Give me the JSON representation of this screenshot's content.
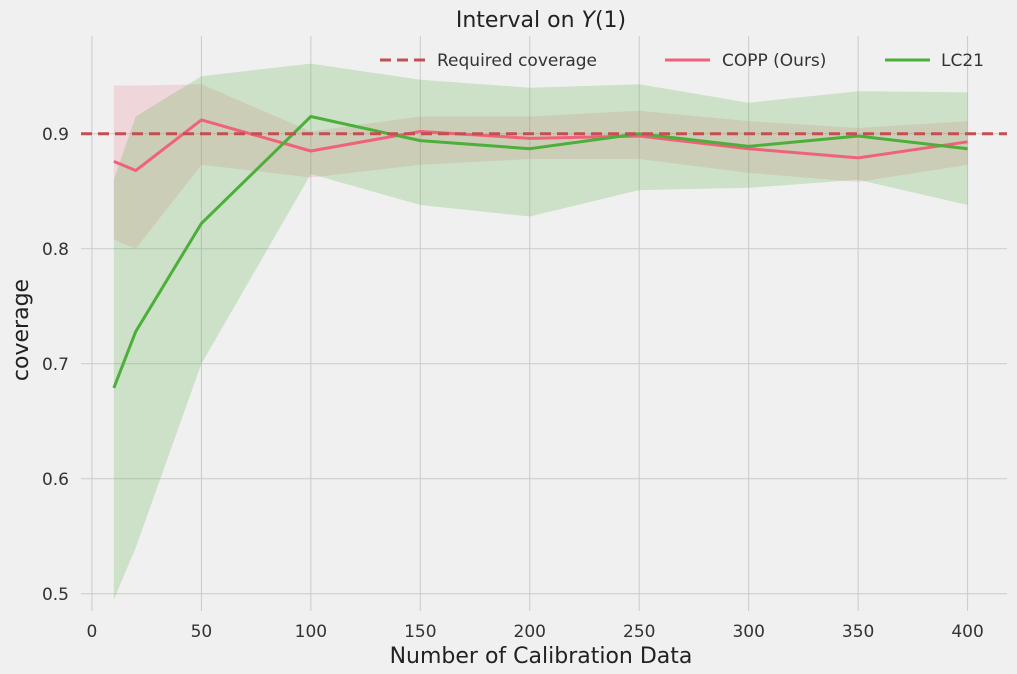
{
  "chart_data": {
    "type": "line",
    "title": "Interval on Y(1)",
    "title_parts": {
      "prefix": "Interval on ",
      "var": "Y",
      "suffix": "(1)"
    },
    "xlabel": "Number of Calibration Data",
    "ylabel": "coverage",
    "xlim": [
      -5,
      418
    ],
    "ylim": [
      0.485,
      0.985
    ],
    "xticks": [
      0,
      50,
      100,
      150,
      200,
      250,
      300,
      350,
      400
    ],
    "yticks": [
      0.5,
      0.6,
      0.7,
      0.8,
      0.9
    ],
    "ytick_labels": [
      "0.5",
      "0.6",
      "0.7",
      "0.8",
      "0.9"
    ],
    "grid": true,
    "legend_position": "top-right",
    "reference_line": {
      "name": "Required coverage",
      "y": 0.9,
      "color": "#c44e52",
      "style": "dashed"
    },
    "x": [
      10,
      20,
      50,
      100,
      150,
      200,
      250,
      300,
      350,
      400
    ],
    "series": [
      {
        "name": "COPP (Ours)",
        "color": "#f0627a",
        "values": [
          0.876,
          0.868,
          0.912,
          0.885,
          0.902,
          0.896,
          0.898,
          0.887,
          0.879,
          0.893
        ],
        "lower": [
          0.808,
          0.8,
          0.873,
          0.862,
          0.873,
          0.878,
          0.878,
          0.866,
          0.858,
          0.873
        ],
        "upper": [
          0.942,
          0.942,
          0.943,
          0.902,
          0.915,
          0.915,
          0.92,
          0.911,
          0.905,
          0.911
        ]
      },
      {
        "name": "LC21",
        "color": "#4caf3a",
        "values": [
          0.679,
          0.728,
          0.822,
          0.915,
          0.894,
          0.887,
          0.9,
          0.889,
          0.898,
          0.887
        ],
        "lower": [
          0.495,
          0.54,
          0.7,
          0.865,
          0.838,
          0.828,
          0.851,
          0.853,
          0.86,
          0.838
        ],
        "upper": [
          0.86,
          0.915,
          0.95,
          0.961,
          0.947,
          0.94,
          0.943,
          0.927,
          0.937,
          0.936
        ]
      }
    ]
  }
}
